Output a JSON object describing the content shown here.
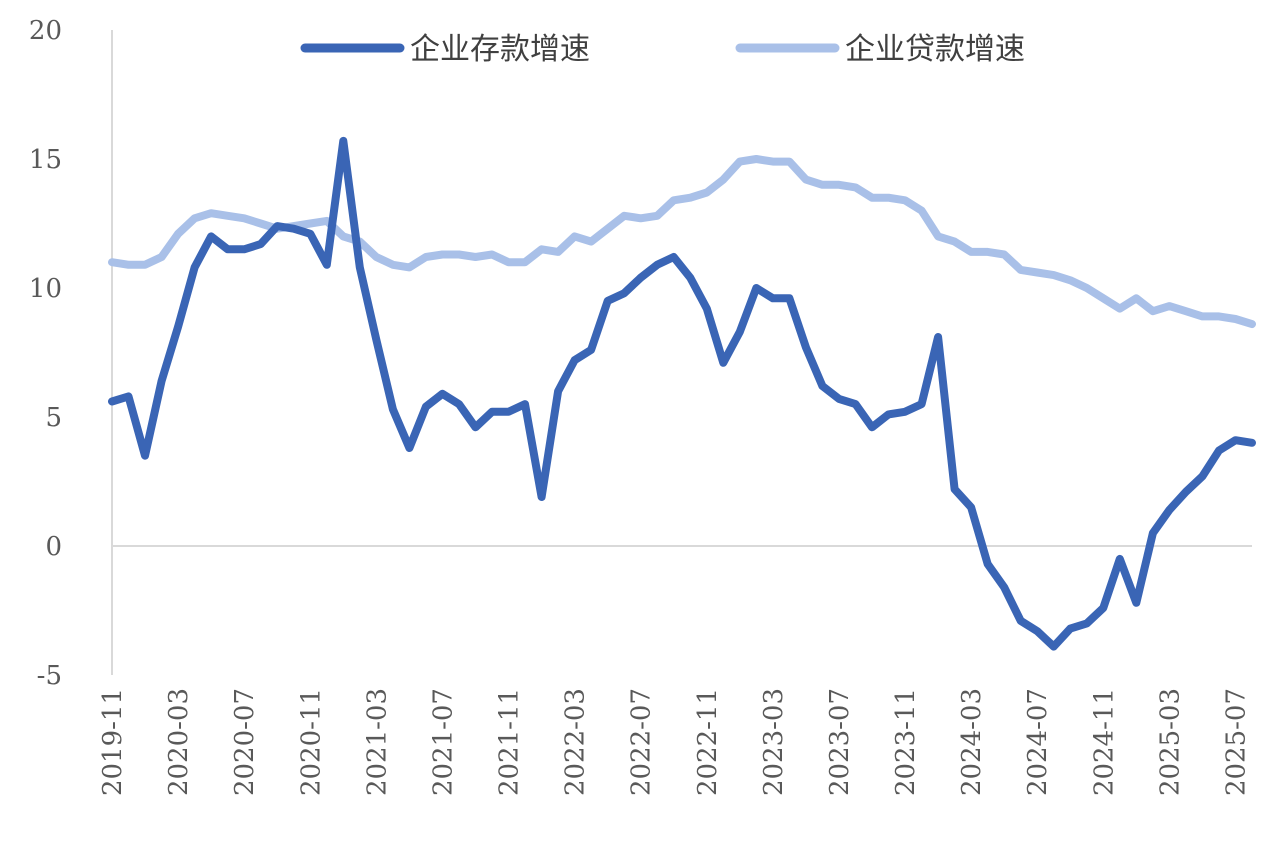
{
  "chart_data": {
    "type": "line",
    "title": "",
    "xlabel": "",
    "ylabel": "",
    "ylim": [
      -5,
      20
    ],
    "y_ticks": [
      20,
      15,
      10,
      5,
      0,
      -5
    ],
    "x_tick_labels": [
      "2019-11",
      "2020-03",
      "2020-07",
      "2020-11",
      "2021-03",
      "2021-07",
      "2021-11",
      "2022-03",
      "2022-07",
      "2022-11",
      "2023-03",
      "2023-07",
      "2023-11",
      "2024-03",
      "2024-07",
      "2024-11",
      "2025-03",
      "2025-07"
    ],
    "x_start": "2019-11",
    "x_end": "2025-08",
    "grid": false,
    "legend_position": "top",
    "series": [
      {
        "name": "企业存款增速",
        "color": "#3a65b5",
        "values": [
          5.6,
          5.8,
          3.5,
          6.4,
          8.5,
          10.8,
          12.0,
          11.5,
          11.5,
          11.7,
          12.4,
          12.3,
          12.1,
          10.9,
          15.7,
          10.8,
          8.0,
          5.3,
          3.8,
          5.4,
          5.9,
          5.5,
          4.6,
          5.2,
          5.2,
          5.5,
          1.9,
          6.0,
          7.2,
          7.6,
          9.5,
          9.8,
          10.4,
          10.9,
          11.2,
          10.4,
          9.2,
          7.1,
          8.3,
          10.0,
          9.6,
          9.6,
          7.7,
          6.2,
          5.7,
          5.5,
          4.6,
          5.1,
          5.2,
          5.5,
          8.1,
          2.2,
          1.5,
          -0.7,
          -1.6,
          -2.9,
          -3.3,
          -3.9,
          -3.2,
          -3.0,
          -2.4,
          -0.5,
          -2.2,
          0.5,
          1.4,
          2.1,
          2.7,
          3.7,
          4.1,
          4.0
        ]
      },
      {
        "name": "企业贷款增速",
        "color": "#a9c0e8",
        "values": [
          11.0,
          10.9,
          10.9,
          11.2,
          12.1,
          12.7,
          12.9,
          12.8,
          12.7,
          12.5,
          12.3,
          12.4,
          12.5,
          12.6,
          12.0,
          11.8,
          11.2,
          10.9,
          10.8,
          11.2,
          11.3,
          11.3,
          11.2,
          11.3,
          11.0,
          11.0,
          11.5,
          11.4,
          12.0,
          11.8,
          12.3,
          12.8,
          12.7,
          12.8,
          13.4,
          13.5,
          13.7,
          14.2,
          14.9,
          15.0,
          14.9,
          14.9,
          14.2,
          14.0,
          14.0,
          13.9,
          13.5,
          13.5,
          13.4,
          13.0,
          12.0,
          11.8,
          11.4,
          11.4,
          11.3,
          10.7,
          10.6,
          10.5,
          10.3,
          10.0,
          9.6,
          9.2,
          9.6,
          9.1,
          9.3,
          9.1,
          8.9,
          8.9,
          8.8,
          8.6
        ]
      }
    ]
  }
}
